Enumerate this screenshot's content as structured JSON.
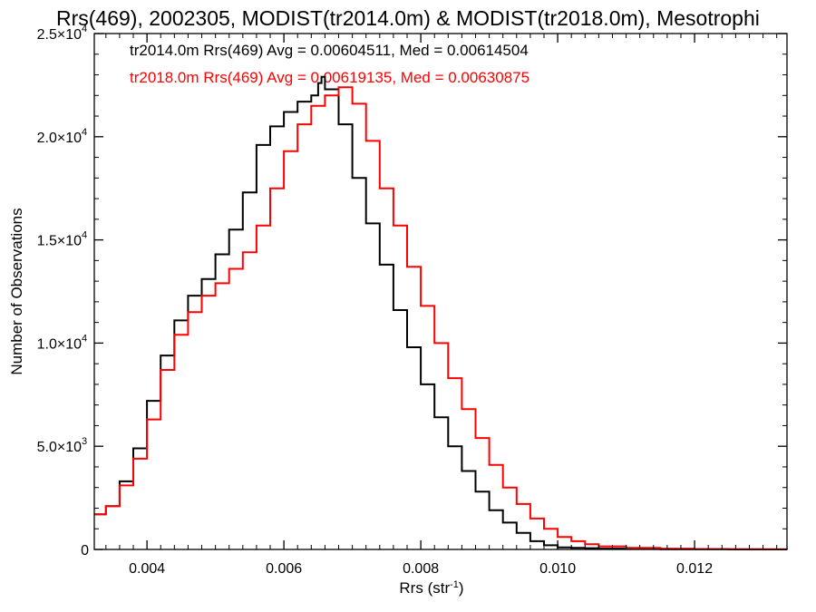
{
  "chart_data": {
    "type": "line",
    "step": true,
    "title": "Rrs(469), 2002305, MODIST(tr2014.0m) & MODIST(tr2018.0m), Mesotrophi",
    "xlabel": "Rrs (str",
    "xlabel_sup": "-1",
    "xlabel_close": ")",
    "ylabel": "Number of Observations",
    "xlim": [
      0.00323,
      0.01335
    ],
    "ylim": [
      0,
      25000
    ],
    "x_ticks": [
      {
        "value": 0.004,
        "label": "0.004"
      },
      {
        "value": 0.006,
        "label": "0.006"
      },
      {
        "value": 0.008,
        "label": "0.008"
      },
      {
        "value": 0.01,
        "label": "0.010"
      },
      {
        "value": 0.012,
        "label": "0.012"
      }
    ],
    "y_ticks": [
      {
        "value": 0,
        "mant": "0",
        "exp": ""
      },
      {
        "value": 5000,
        "mant": "5.0×10",
        "exp": "3"
      },
      {
        "value": 10000,
        "mant": "1.0×10",
        "exp": "4"
      },
      {
        "value": 15000,
        "mant": "1.5×10",
        "exp": "4"
      },
      {
        "value": 20000,
        "mant": "2.0×10",
        "exp": "4"
      },
      {
        "value": 25000,
        "mant": "2.5×10",
        "exp": "4"
      }
    ],
    "legend": [
      {
        "text": "tr2014.0m Rrs(469) Avg = 0.00604511, Med = 0.00614504",
        "color": "#000000"
      },
      {
        "text": "tr2018.0m Rrs(469) Avg = 0.00619135, Med = 0.00630875",
        "color": "#ff0000"
      }
    ],
    "series": [
      {
        "color": "#000000",
        "x": [
          0.00323,
          0.0034,
          0.0036,
          0.0038,
          0.004,
          0.0042,
          0.0044,
          0.0046,
          0.0048,
          0.005,
          0.0052,
          0.0054,
          0.0056,
          0.0058,
          0.006,
          0.0062,
          0.0064,
          0.0065,
          0.00655,
          0.0066,
          0.0068,
          0.007,
          0.0072,
          0.0074,
          0.0076,
          0.0078,
          0.008,
          0.0082,
          0.0084,
          0.0086,
          0.0088,
          0.009,
          0.0092,
          0.0094,
          0.0096,
          0.0098,
          0.01,
          0.0102,
          0.0104,
          0.0106,
          0.011,
          0.0115,
          0.012,
          0.0125,
          0.013,
          0.01335
        ],
        "values": [
          1700,
          2100,
          3300,
          4900,
          7200,
          9400,
          11100,
          12300,
          13100,
          14300,
          15500,
          17300,
          19600,
          20500,
          21200,
          21700,
          22000,
          22600,
          22900,
          22300,
          20600,
          18000,
          15800,
          13800,
          11600,
          9800,
          8000,
          6400,
          5000,
          3800,
          2800,
          1900,
          1300,
          800,
          400,
          200,
          100,
          80,
          60,
          40,
          25,
          15,
          10,
          5,
          3,
          2
        ]
      },
      {
        "color": "#ff0000",
        "x": [
          0.00323,
          0.0034,
          0.0036,
          0.0038,
          0.004,
          0.0042,
          0.0044,
          0.0046,
          0.0048,
          0.005,
          0.0052,
          0.0054,
          0.0056,
          0.0058,
          0.006,
          0.0062,
          0.0064,
          0.0066,
          0.0068,
          0.007,
          0.0072,
          0.0074,
          0.0076,
          0.0078,
          0.008,
          0.0082,
          0.0084,
          0.0086,
          0.0088,
          0.009,
          0.0092,
          0.0094,
          0.0096,
          0.0098,
          0.01,
          0.0102,
          0.0104,
          0.0106,
          0.011,
          0.0115,
          0.012,
          0.0125,
          0.013,
          0.01335
        ],
        "values": [
          1700,
          2100,
          3100,
          4400,
          6300,
          8700,
          10400,
          11500,
          12300,
          12900,
          13600,
          14400,
          15700,
          17500,
          19300,
          20600,
          21500,
          22000,
          22400,
          21600,
          19800,
          17500,
          15700,
          13700,
          11800,
          10000,
          8300,
          6800,
          5400,
          4100,
          3000,
          2200,
          1500,
          1000,
          600,
          400,
          250,
          150,
          80,
          40,
          20,
          10,
          5,
          3
        ]
      }
    ]
  }
}
